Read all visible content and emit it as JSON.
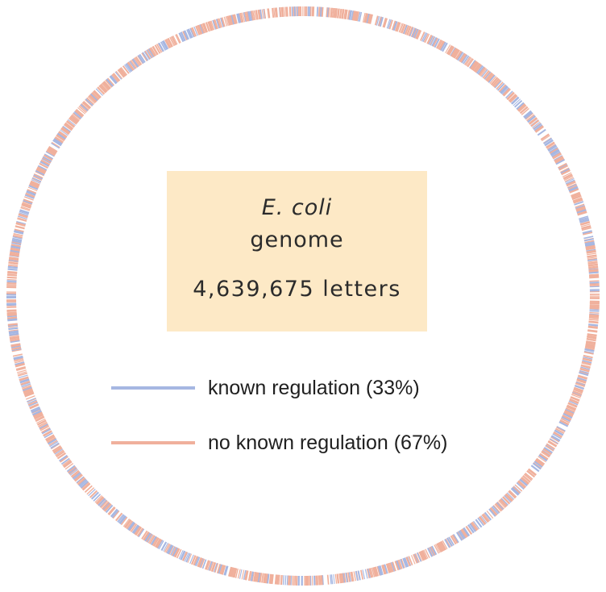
{
  "center": {
    "organism": "E. coli",
    "label": "genome",
    "count_text": "4,639,675 letters"
  },
  "legend": [
    {
      "label": "known regulation (33%)",
      "color": "#a6b7e2"
    },
    {
      "label": "no known regulation (67%)",
      "color": "#f0b09c"
    }
  ],
  "ring": {
    "known_fraction": 0.33,
    "colors": {
      "known": "#a6b7e2",
      "unknown": "#f0b09c"
    }
  }
}
